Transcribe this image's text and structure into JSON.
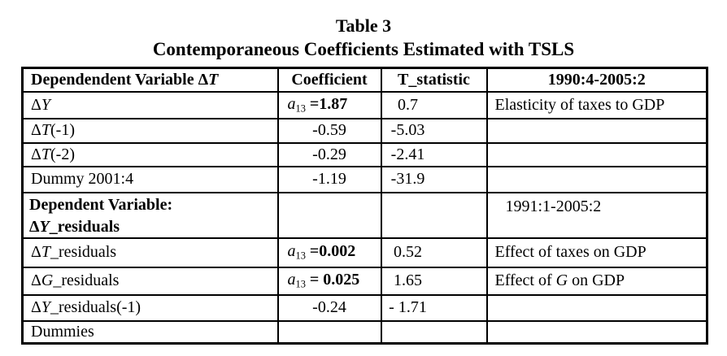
{
  "titles": {
    "table_number": "Table 3",
    "table_title": "Contemporaneous Coefficients Estimated with TSLS"
  },
  "table": {
    "header": {
      "variable": [
        {
          "t": "Dependendent Variable  Δ"
        },
        {
          "t": "T",
          "i": 1
        }
      ],
      "coefficient": "Coefficient",
      "t_statistic": "T_statistic",
      "period": "1990:4-2005:2"
    },
    "rows": [
      {
        "label": [
          {
            "t": "Δ"
          },
          {
            "t": "Y",
            "i": 1
          }
        ],
        "coef": [
          {
            "t": "a",
            "i": 1
          },
          {
            "t": "13",
            "sub": 1
          },
          {
            "t": "  "
          },
          {
            "t": "=1.87",
            "b": 1
          }
        ],
        "tstat": "0.7",
        "note": [
          {
            "t": "Elasticity of taxes to GDP"
          }
        ]
      },
      {
        "label": [
          {
            "t": "Δ"
          },
          {
            "t": "T",
            "i": 1
          },
          {
            "t": "(-1)"
          }
        ],
        "coef": [
          {
            "t": "-0.59"
          }
        ],
        "tstat": "-5.03",
        "note": []
      },
      {
        "label": [
          {
            "t": "Δ"
          },
          {
            "t": "T",
            "i": 1
          },
          {
            "t": "(-2)"
          }
        ],
        "coef": [
          {
            "t": "-0.29"
          }
        ],
        "tstat": "-2.41",
        "note": []
      },
      {
        "label": [
          {
            "t": "Dummy 2001:4"
          }
        ],
        "coef": [
          {
            "t": "-1.19"
          }
        ],
        "tstat": "-31.9",
        "note": []
      },
      {
        "label_line1": "Dependent Variable:",
        "label_line2": [
          {
            "t": "Δ"
          },
          {
            "t": "Y",
            "i": 1
          },
          {
            "t": "_residuals"
          }
        ],
        "coef": [],
        "tstat": "",
        "note": [
          {
            "t": "1991:1-2005:2"
          }
        ]
      },
      {
        "label": [
          {
            "t": "Δ"
          },
          {
            "t": "T",
            "i": 1
          },
          {
            "t": "_residuals"
          }
        ],
        "coef": [
          {
            "t": "a",
            "i": 1
          },
          {
            "t": "13",
            "sub": 1
          },
          {
            "t": " "
          },
          {
            "t": "=0.002",
            "b": 1
          }
        ],
        "tstat": "0.52",
        "note": [
          {
            "t": "Effect of taxes on GDP"
          }
        ]
      },
      {
        "label": [
          {
            "t": "Δ"
          },
          {
            "t": "G",
            "i": 1
          },
          {
            "t": "_residuals"
          }
        ],
        "coef": [
          {
            "t": "a",
            "i": 1
          },
          {
            "t": "13",
            "sub": 1
          },
          {
            "t": " "
          },
          {
            "t": "= 0.025",
            "b": 1
          }
        ],
        "tstat": "1.65",
        "note": [
          {
            "t": "Effect of "
          },
          {
            "t": "G",
            "i": 1
          },
          {
            "t": " on GDP"
          }
        ]
      },
      {
        "label": [
          {
            "t": "Δ"
          },
          {
            "t": "Y",
            "i": 1
          },
          {
            "t": "_residuals(-1)"
          }
        ],
        "coef": [
          {
            "t": "-0.24"
          }
        ],
        "tstat": "- 1.71",
        "note": []
      },
      {
        "label": [
          {
            "t": "Dummies"
          }
        ],
        "coef": [],
        "tstat": "",
        "note": []
      }
    ]
  }
}
